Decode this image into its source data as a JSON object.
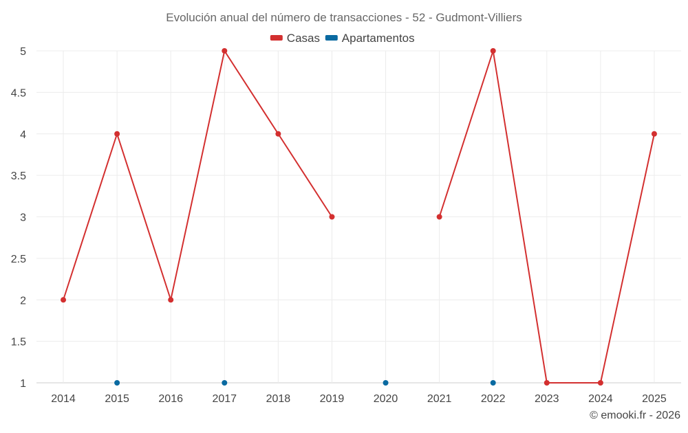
{
  "chart_data": {
    "type": "line",
    "title": "Evolución anual del número de transacciones - 52 - Gudmont-Villiers",
    "xlabel": "",
    "ylabel": "",
    "categories": [
      "2014",
      "2015",
      "2016",
      "2017",
      "2018",
      "2019",
      "2020",
      "2021",
      "2022",
      "2023",
      "2024",
      "2025"
    ],
    "ylim": [
      1,
      5
    ],
    "yticks": [
      "1",
      "1.5",
      "2",
      "2.5",
      "3",
      "3.5",
      "4",
      "4.5",
      "5"
    ],
    "grid": true,
    "legend_position": "top-center",
    "series": [
      {
        "name": "Casas",
        "color": "#d32f2f",
        "values": [
          2,
          4,
          2,
          5,
          4,
          3,
          null,
          3,
          5,
          1,
          1,
          4
        ]
      },
      {
        "name": "Apartamentos",
        "color": "#0a6aa1",
        "values": [
          null,
          1,
          null,
          1,
          null,
          null,
          1,
          null,
          1,
          null,
          null,
          null
        ]
      }
    ]
  },
  "credit": "© emooki.fr - 2026"
}
